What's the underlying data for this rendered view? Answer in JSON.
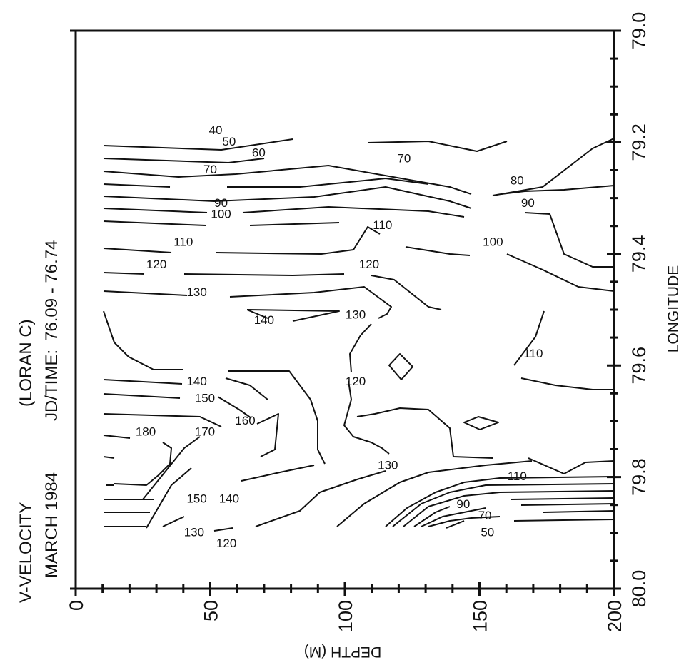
{
  "chart_data": {
    "type": "contour",
    "title_lines": [
      "V-VELOCITY",
      "MARCH 1984"
    ],
    "source": "(LORAN C)",
    "time_label": "JD/TIME:",
    "time_range": "76.09  -  76.74",
    "xlabel": "DEPTH (M)",
    "ylabel": "LONGITUDE",
    "xlim": [
      0,
      200
    ],
    "ylim": [
      80.0,
      79.0
    ],
    "x_ticks": [
      "0",
      "50",
      "100",
      "150",
      "200"
    ],
    "y_ticks": [
      "80.0",
      "79.8",
      "79.6",
      "79.4",
      "79.2",
      "79.0"
    ],
    "contour_levels": [
      40,
      50,
      60,
      70,
      80,
      90,
      100,
      110,
      120,
      130,
      140,
      150,
      160,
      170,
      180
    ],
    "contour_labels": [
      {
        "text": "40",
        "x": 52,
        "y": 79.18
      },
      {
        "text": "50",
        "x": 57,
        "y": 79.2
      },
      {
        "text": "60",
        "x": 68,
        "y": 79.22
      },
      {
        "text": "70",
        "x": 122,
        "y": 79.23
      },
      {
        "text": "70",
        "x": 50,
        "y": 79.25
      },
      {
        "text": "80",
        "x": 164,
        "y": 79.27
      },
      {
        "text": "90",
        "x": 54,
        "y": 79.31
      },
      {
        "text": "90",
        "x": 168,
        "y": 79.31
      },
      {
        "text": "100",
        "x": 54,
        "y": 79.33
      },
      {
        "text": "110",
        "x": 114,
        "y": 79.35
      },
      {
        "text": "110",
        "x": 40,
        "y": 79.38
      },
      {
        "text": "100",
        "x": 155,
        "y": 79.38
      },
      {
        "text": "120",
        "x": 30,
        "y": 79.42
      },
      {
        "text": "120",
        "x": 109,
        "y": 79.42
      },
      {
        "text": "130",
        "x": 45,
        "y": 79.47
      },
      {
        "text": "140",
        "x": 70,
        "y": 79.52
      },
      {
        "text": "130",
        "x": 104,
        "y": 79.51
      },
      {
        "text": "110",
        "x": 170,
        "y": 79.58
      },
      {
        "text": "140",
        "x": 45,
        "y": 79.63
      },
      {
        "text": "120",
        "x": 104,
        "y": 79.63
      },
      {
        "text": "150",
        "x": 48,
        "y": 79.66
      },
      {
        "text": "180",
        "x": 26,
        "y": 79.72
      },
      {
        "text": "170",
        "x": 48,
        "y": 79.72
      },
      {
        "text": "160",
        "x": 63,
        "y": 79.7
      },
      {
        "text": "130",
        "x": 116,
        "y": 79.78
      },
      {
        "text": "110",
        "x": 164,
        "y": 79.8
      },
      {
        "text": "150",
        "x": 45,
        "y": 79.84
      },
      {
        "text": "140",
        "x": 57,
        "y": 79.84
      },
      {
        "text": "90",
        "x": 144,
        "y": 79.85
      },
      {
        "text": "70",
        "x": 152,
        "y": 79.87
      },
      {
        "text": "130",
        "x": 44,
        "y": 79.9
      },
      {
        "text": "120",
        "x": 56,
        "y": 79.92
      },
      {
        "text": "50",
        "x": 153,
        "y": 79.9
      }
    ]
  }
}
